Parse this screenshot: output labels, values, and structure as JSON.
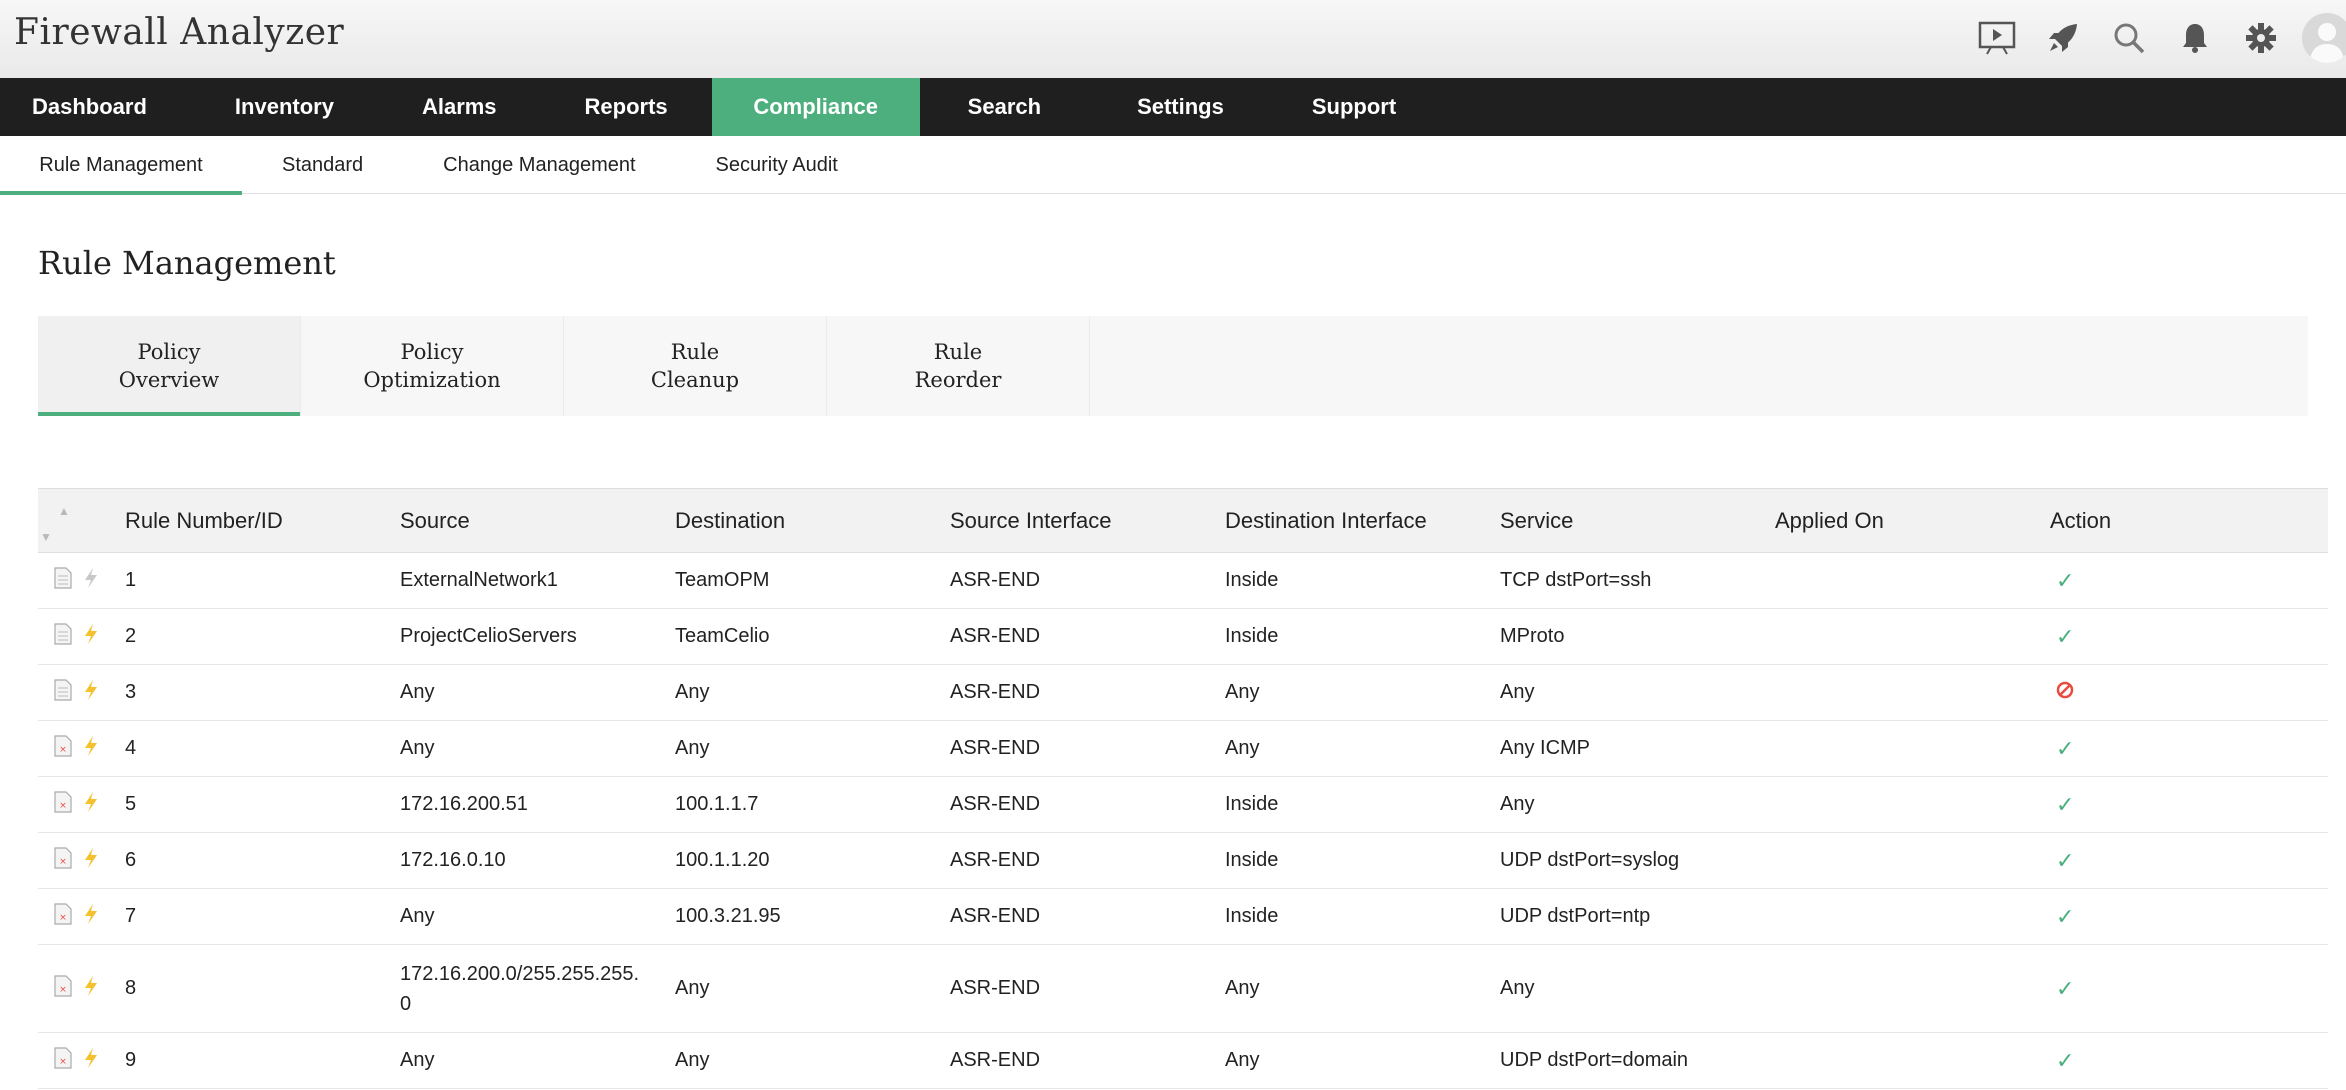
{
  "app": {
    "title": "Firewall Analyzer"
  },
  "header_icons": [
    "presentation-icon",
    "rocket-icon",
    "search-icon",
    "bell-icon",
    "gear-icon",
    "user-avatar-icon"
  ],
  "main_nav": {
    "active": "Compliance",
    "items": [
      "Dashboard",
      "Inventory",
      "Alarms",
      "Reports",
      "Compliance",
      "Search",
      "Settings",
      "Support"
    ]
  },
  "sub_nav": {
    "active": "Rule Management",
    "items": [
      "Rule Management",
      "Standard",
      "Change Management",
      "Security Audit"
    ]
  },
  "page_title": "Rule Management",
  "policy_tabs": [
    {
      "line1": "Policy",
      "line2": "Overview",
      "active": true
    },
    {
      "line1": "Policy",
      "line2": "Optimization",
      "active": false
    },
    {
      "line1": "Rule",
      "line2": "Cleanup",
      "active": false
    },
    {
      "line1": "Rule",
      "line2": "Reorder",
      "active": false
    }
  ],
  "table": {
    "columns": [
      "Rule Number/ID",
      "Source",
      "Destination",
      "Source Interface",
      "Destination Interface",
      "Service",
      "Applied On",
      "Action"
    ],
    "rows": [
      {
        "id": "1",
        "source": "ExternalNetwork1",
        "destination": "TeamOPM",
        "source_interface": "ASR-END",
        "destination_interface": "Inside",
        "service": "TCP dstPort=ssh",
        "applied_on": "",
        "action": "allow"
      },
      {
        "id": "2",
        "source": "ProjectCelioServers",
        "destination": "TeamCelio",
        "source_interface": "ASR-END",
        "destination_interface": "Inside",
        "service": "MProto",
        "applied_on": "",
        "action": "allow"
      },
      {
        "id": "3",
        "source": "Any",
        "destination": "Any",
        "source_interface": "ASR-END",
        "destination_interface": "Any",
        "service": "Any",
        "applied_on": "",
        "action": "deny"
      },
      {
        "id": "4",
        "source": "Any",
        "destination": "Any",
        "source_interface": "ASR-END",
        "destination_interface": "Any",
        "service": "Any ICMP",
        "applied_on": "",
        "action": "allow"
      },
      {
        "id": "5",
        "source": "172.16.200.51",
        "destination": "100.1.1.7",
        "source_interface": "ASR-END",
        "destination_interface": "Inside",
        "service": "Any",
        "applied_on": "",
        "action": "allow"
      },
      {
        "id": "6",
        "source": "172.16.0.10",
        "destination": "100.1.1.20",
        "source_interface": "ASR-END",
        "destination_interface": "Inside",
        "service": "UDP dstPort=syslog",
        "applied_on": "",
        "action": "allow"
      },
      {
        "id": "7",
        "source": "Any",
        "destination": "100.3.21.95",
        "source_interface": "ASR-END",
        "destination_interface": "Inside",
        "service": "UDP dstPort=ntp",
        "applied_on": "",
        "action": "allow"
      },
      {
        "id": "8",
        "source": "172.16.200.0/255.255.255.0",
        "destination": "Any",
        "source_interface": "ASR-END",
        "destination_interface": "Any",
        "service": "Any",
        "applied_on": "",
        "action": "allow"
      },
      {
        "id": "9",
        "source": "Any",
        "destination": "Any",
        "source_interface": "ASR-END",
        "destination_interface": "Any",
        "service": "UDP dstPort=domain",
        "applied_on": "",
        "action": "allow"
      }
    ]
  },
  "colors": {
    "accent": "#4caf7d",
    "link": "#2541d8",
    "nav_bg": "#1f1f1f",
    "deny": "#e74c3c",
    "bolt": "#f2c12e"
  }
}
